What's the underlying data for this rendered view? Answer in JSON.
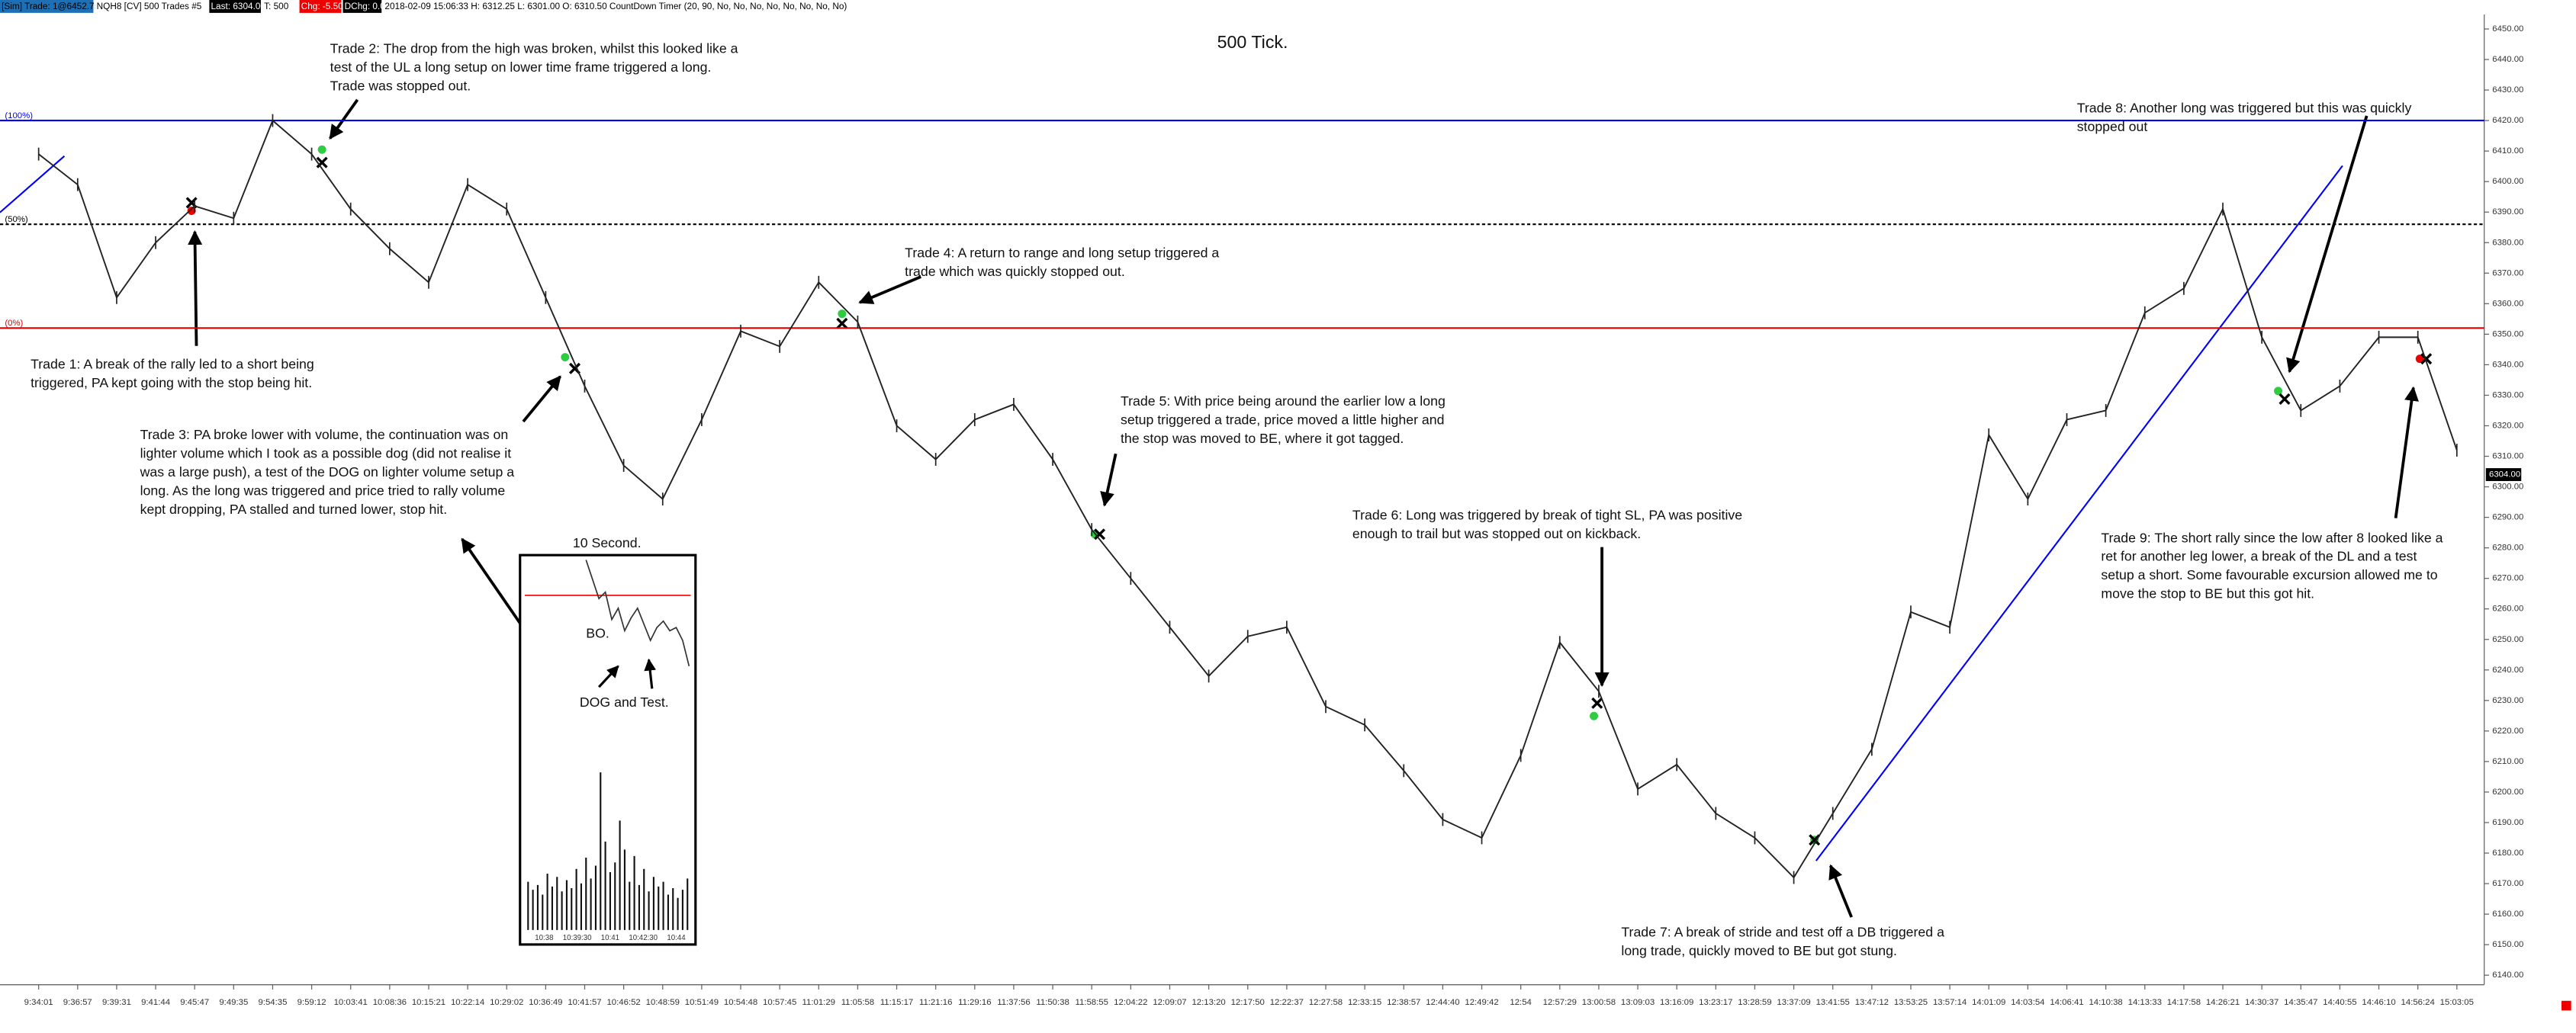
{
  "status_bar": [
    "[Sim] Trade: 1@6452.75",
    "NQH8 [CV]  500 Trades  #5",
    "Last: 6304.00",
    "T: 500",
    "Chg: -5.50",
    "DChg: 0.00",
    "2018-02-09 15:06:33  H: 6312.25  L: 6301.00  O: 6310.50  CountDown Timer  (20, 90, No, No, No, No, No, No, No, No)"
  ],
  "chart_data": {
    "type": "line",
    "title": "500 Tick.",
    "categories": [
      "9:34:01",
      "9:36:57",
      "9:39:31",
      "9:41:44",
      "9:45:47",
      "9:49:35",
      "9:54:35",
      "9:59:12",
      "10:03:41",
      "10:08:36",
      "10:15:21",
      "10:22:14",
      "10:29:02",
      "10:36:49",
      "10:41:57",
      "10:46:52",
      "10:48:59",
      "10:51:49",
      "10:54:48",
      "10:57:45",
      "11:01:29",
      "11:05:58",
      "11:15:17",
      "11:21:16",
      "11:29:16",
      "11:37:56",
      "11:50:38",
      "11:58:55",
      "12:04:22",
      "12:09:07",
      "12:13:20",
      "12:17:50",
      "12:22:37",
      "12:27:58",
      "12:33:15",
      "12:38:57",
      "12:44:40",
      "12:49:42",
      "12:54",
      "12:57:29",
      "13:00:58",
      "13:09:03",
      "13:16:09",
      "13:23:17",
      "13:28:59",
      "13:37:09",
      "13:41:55",
      "13:47:12",
      "13:53:25",
      "13:57:14",
      "14:01:09",
      "14:03:54",
      "14:06:41",
      "14:10:38",
      "14:13:33",
      "14:17:58",
      "14:26:21",
      "14:30:37",
      "14:35:47",
      "14:40:55",
      "14:46:10",
      "14:56:24",
      "15:03:05"
    ],
    "values": [
      6409,
      6399,
      6362,
      6380,
      6392,
      6388,
      6420,
      6409,
      6391,
      6378,
      6367,
      6399,
      6391,
      6362,
      6333,
      6307,
      6296,
      6322,
      6351,
      6346,
      6367,
      6354,
      6320,
      6309,
      6322,
      6327,
      6309,
      6286,
      6270,
      6254,
      6238,
      6251,
      6254,
      6228,
      6222,
      6207,
      6191,
      6185,
      6212,
      6249,
      6233,
      6201,
      6209,
      6193,
      6185,
      6172,
      6193,
      6214,
      6259,
      6254,
      6317,
      6296,
      6322,
      6325,
      6357,
      6365,
      6391,
      6349,
      6325,
      6333,
      6349,
      6349,
      6312
    ],
    "color": "#222222",
    "ylim": [
      6135,
      6458
    ],
    "yticks": [
      {
        "value": 6140,
        "label": "6140.00"
      },
      {
        "value": 6150,
        "label": "6150.00"
      },
      {
        "value": 6160,
        "label": "6160.00"
      },
      {
        "value": 6170,
        "label": "6170.00"
      },
      {
        "value": 6180,
        "label": "6180.00"
      },
      {
        "value": 6190,
        "label": "6190.00"
      },
      {
        "value": 6200,
        "label": "6200.00"
      },
      {
        "value": 6210,
        "label": "6210.00"
      },
      {
        "value": 6220,
        "label": "6220.00"
      },
      {
        "value": 6230,
        "label": "6230.00"
      },
      {
        "value": 6240,
        "label": "6240.00"
      },
      {
        "value": 6250,
        "label": "6250.00"
      },
      {
        "value": 6260,
        "label": "6260.00"
      },
      {
        "value": 6270,
        "label": "6270.00"
      },
      {
        "value": 6280,
        "label": "6280.00"
      },
      {
        "value": 6290,
        "label": "6290.00"
      },
      {
        "value": 6300,
        "label": "6300.00"
      },
      {
        "value": 6310,
        "label": "6310.00"
      },
      {
        "value": 6320,
        "label": "6320.00"
      },
      {
        "value": 6330,
        "label": "6330.00"
      },
      {
        "value": 6340,
        "label": "6340.00"
      },
      {
        "value": 6350,
        "label": "6350.00"
      },
      {
        "value": 6360,
        "label": "6360.00"
      },
      {
        "value": 6370,
        "label": "6370.00"
      },
      {
        "value": 6380,
        "label": "6380.00"
      },
      {
        "value": 6390,
        "label": "6390.00"
      },
      {
        "value": 6400,
        "label": "6400.00"
      },
      {
        "value": 6410,
        "label": "6410.00"
      },
      {
        "value": 6420,
        "label": "6420.00"
      },
      {
        "value": 6430,
        "label": "6430.00"
      },
      {
        "value": 6440,
        "label": "6440.00"
      },
      {
        "value": 6450,
        "label": "6450.00"
      }
    ],
    "last_price": {
      "value": 6304,
      "label": "6304.00"
    },
    "levels": [
      {
        "value": 6420,
        "label": "(100%)",
        "color": "#0000ff",
        "style": "solid"
      },
      {
        "value": 6386,
        "label": "(50%)",
        "color": "#000000",
        "style": "dotted"
      },
      {
        "value": 6352,
        "label": "(0%)",
        "color": "#e00000",
        "style": "solid"
      }
    ],
    "annotations": [
      [
        "Trade 1:  A break of the rally led to a short being",
        "triggered, PA kept going with the stop being hit."
      ],
      [
        "Trade 2:  The drop from the high was broken, whilst this looked like a",
        "test of the UL a long setup on lower time frame triggered a long.",
        "Trade was stopped out."
      ],
      [
        "Trade 3:  PA broke lower with volume, the continuation was on",
        "lighter volume which I took as a possible dog (did not realise it",
        "was a large push), a test of the DOG on lighter volume setup a",
        "long.  As the long was triggered and price tried to rally volume",
        "kept dropping, PA stalled and turned lower, stop hit."
      ],
      [
        "Trade 4:  A return to range and long setup triggered a",
        "trade which was quickly stopped out."
      ],
      [
        "Trade 5:  With price being around the earlier low a long",
        "setup triggered a trade, price moved a little higher and",
        "the stop was moved to BE, where it got tagged."
      ],
      [
        "Trade 6:  Long was triggered by break of tight SL, PA was positive",
        "enough to trail but was stopped out on kickback."
      ],
      [
        "Trade 7:  A break of stride and test off a DB triggered a",
        "long trade, quickly moved to BE but got stung."
      ],
      [
        "Trade 8:  Another long was triggered but this was quickly",
        "stopped out"
      ],
      [
        "Trade 9:  The short rally since the low after 8 looked like a",
        "ret for another leg lower, a break of the DL and a test",
        "setup a short.  Some favourable excursion allowed me to",
        "move the stop to BE but this got hit."
      ]
    ],
    "inset": {
      "title": "10 Second.",
      "labels": [
        "BO.",
        "DOG and Test."
      ],
      "xticks": [
        "10:38",
        "10:39:30",
        "10:41",
        "10:42:30",
        "10:44"
      ]
    }
  }
}
